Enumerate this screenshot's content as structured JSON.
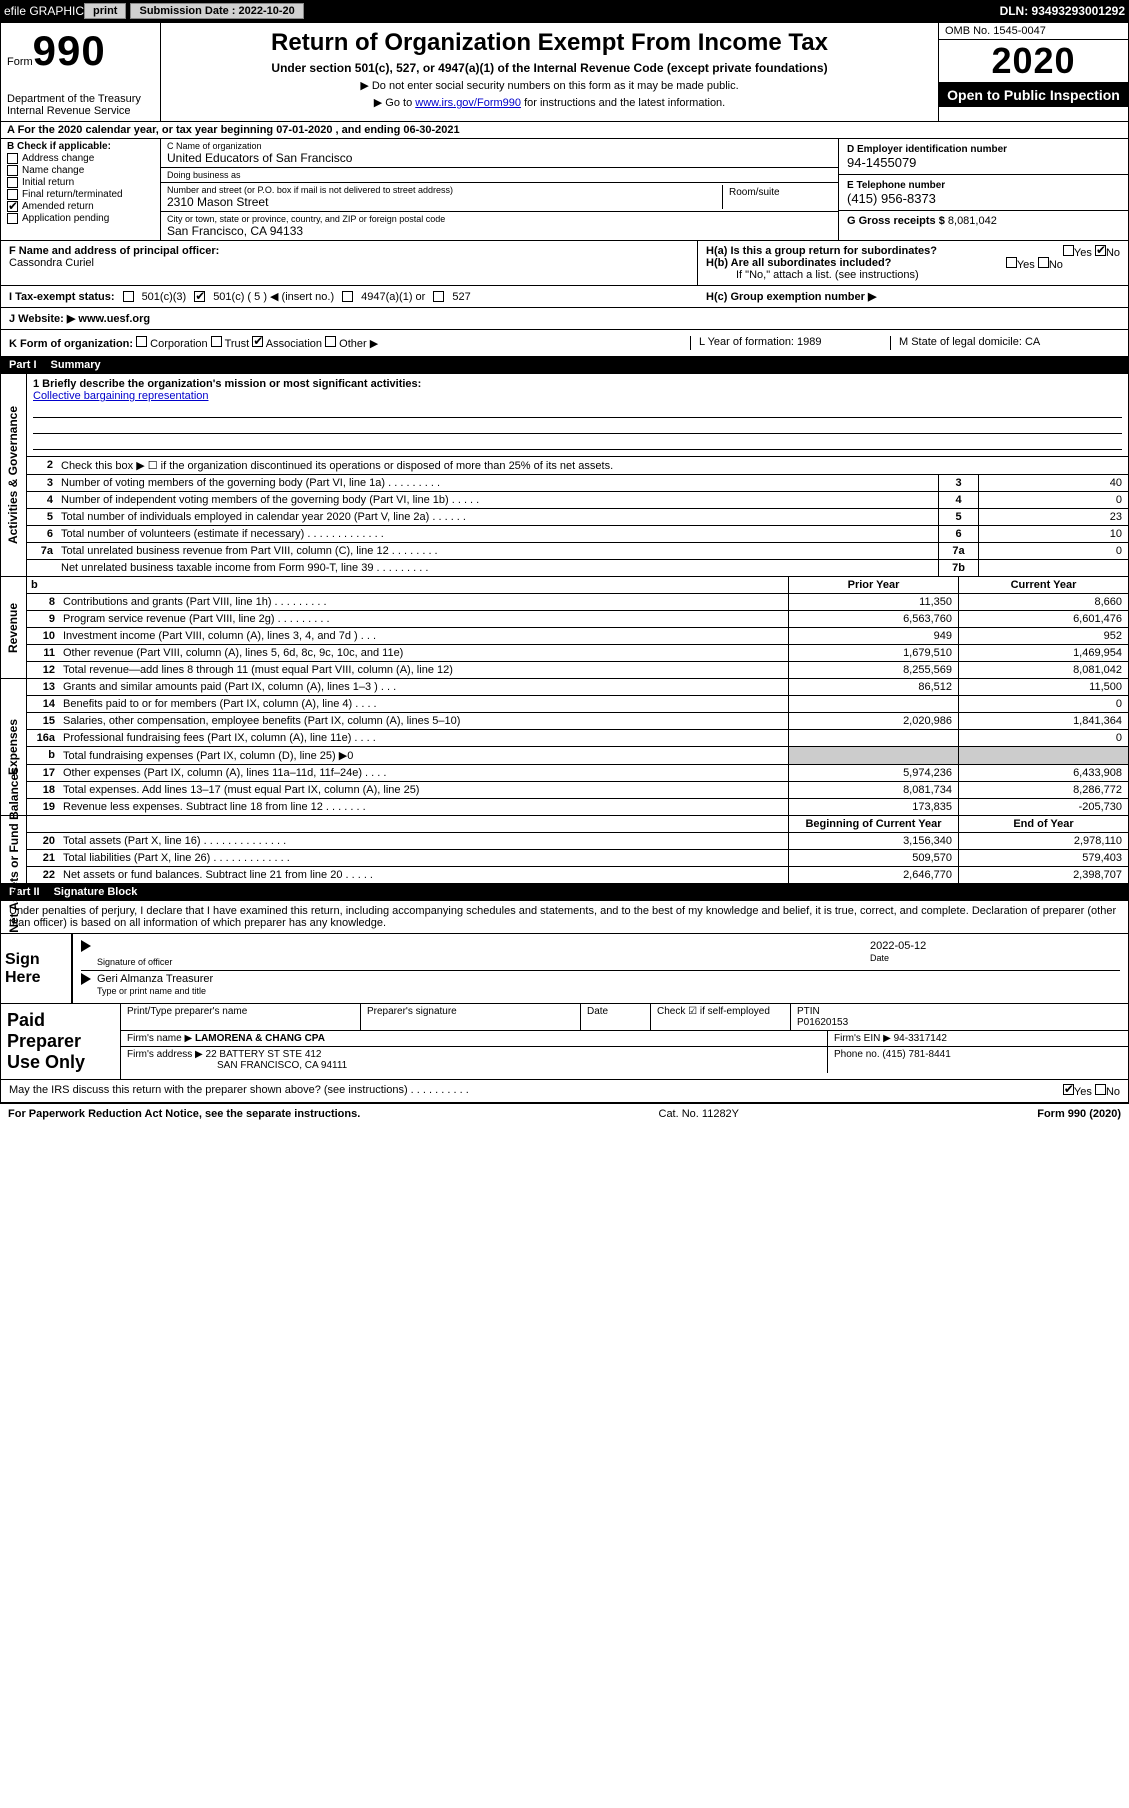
{
  "topbar": {
    "efile": "efile GRAPHIC",
    "print": "print",
    "subdate_label": "Submission Date : 2022-10-20",
    "dln": "DLN: 93493293001292"
  },
  "header": {
    "form_word": "Form",
    "form_num": "990",
    "dept": "Department of the Treasury\nInternal Revenue Service",
    "title": "Return of Organization Exempt From Income Tax",
    "sub1": "Under section 501(c), 527, or 4947(a)(1) of the Internal Revenue Code (except private foundations)",
    "sub2": "▶ Do not enter social security numbers on this form as it may be made public.",
    "sub3_pre": "▶ Go to ",
    "sub3_link": "www.irs.gov/Form990",
    "sub3_post": " for instructions and the latest information.",
    "omb": "OMB No. 1545-0047",
    "year": "2020",
    "open": "Open to Public Inspection"
  },
  "lineA": "A For the 2020 calendar year, or tax year beginning 07-01-2020   , and ending 06-30-2021",
  "boxB": {
    "label": "B Check if applicable:",
    "items": [
      {
        "label": "Address change",
        "checked": false
      },
      {
        "label": "Name change",
        "checked": false
      },
      {
        "label": "Initial return",
        "checked": false
      },
      {
        "label": "Final return/terminated",
        "checked": false
      },
      {
        "label": "Amended return",
        "checked": true
      },
      {
        "label": "Application pending",
        "checked": false
      }
    ]
  },
  "boxC": {
    "name_lbl": "C Name of organization",
    "name": "United Educators of San Francisco",
    "dba_lbl": "Doing business as",
    "addr_lbl": "Number and street (or P.O. box if mail is not delivered to street address)",
    "addr": "2310 Mason Street",
    "room_lbl": "Room/suite",
    "city_lbl": "City or town, state or province, country, and ZIP or foreign postal code",
    "city": "San Francisco, CA  94133"
  },
  "boxD": {
    "lbl": "D Employer identification number",
    "val": "94-1455079"
  },
  "boxE": {
    "lbl": "E Telephone number",
    "val": "(415) 956-8373"
  },
  "boxG": {
    "lbl": "G Gross receipts $",
    "val": "8,081,042"
  },
  "boxF": {
    "lbl": "F  Name and address of principal officer:",
    "val": "Cassondra Curiel"
  },
  "boxH": {
    "ha": "H(a)  Is this a group return for subordinates?",
    "hb": "H(b)  Are all subordinates included?",
    "hb_note": "If \"No,\" attach a list. (see instructions)",
    "hc": "H(c)  Group exemption number ▶",
    "yes": "Yes",
    "no": "No"
  },
  "boxI": {
    "lbl": "I   Tax-exempt status:",
    "opts": [
      "501(c)(3)",
      "501(c) ( 5 ) ◀ (insert no.)",
      "4947(a)(1) or",
      "527"
    ]
  },
  "boxJ": {
    "lbl": "J   Website: ▶",
    "val": "www.uesf.org"
  },
  "boxK": {
    "lbl": "K Form of organization:",
    "opts": [
      "Corporation",
      "Trust",
      "Association",
      "Other ▶"
    ],
    "L": "L Year of formation: 1989",
    "M": "M State of legal domicile: CA"
  },
  "part1": {
    "num": "Part I",
    "title": "Summary"
  },
  "summary": {
    "brief_lbl": "1  Briefly describe the organization's mission or most significant activities:",
    "brief_val": "Collective bargaining representation",
    "line2": "Check this box ▶ ☐  if the organization discontinued its operations or disposed of more than 25% of its net assets.",
    "rows": [
      {
        "n": "3",
        "txt": "Number of voting members of the governing body (Part VI, line 1a)  .   .   .   .   .   .   .   .   .",
        "box": "3",
        "val": "40"
      },
      {
        "n": "4",
        "txt": "Number of independent voting members of the governing body (Part VI, line 1b)  .   .   .   .   .",
        "box": "4",
        "val": "0"
      },
      {
        "n": "5",
        "txt": "Total number of individuals employed in calendar year 2020 (Part V, line 2a)  .   .   .   .   .   .",
        "box": "5",
        "val": "23"
      },
      {
        "n": "6",
        "txt": "Total number of volunteers (estimate if necessary)  .   .   .   .   .   .   .   .   .   .   .   .   .",
        "box": "6",
        "val": "10"
      },
      {
        "n": "7a",
        "txt": "Total unrelated business revenue from Part VIII, column (C), line 12  .   .   .   .   .   .   .   .",
        "box": "7a",
        "val": "0"
      },
      {
        "n": "",
        "txt": "Net unrelated business taxable income from Form 990-T, line 39  .   .   .   .   .   .   .   .   .",
        "box": "7b",
        "val": ""
      }
    ]
  },
  "revenue": {
    "side": "Revenue",
    "hdr_b": "b",
    "hdr1": "Prior Year",
    "hdr2": "Current Year",
    "rows": [
      {
        "n": "8",
        "txt": "Contributions and grants (Part VIII, line 1h)  .   .   .   .   .   .   .   .   .",
        "c1": "11,350",
        "c2": "8,660"
      },
      {
        "n": "9",
        "txt": "Program service revenue (Part VIII, line 2g)  .   .   .   .   .   .   .   .   .",
        "c1": "6,563,760",
        "c2": "6,601,476"
      },
      {
        "n": "10",
        "txt": "Investment income (Part VIII, column (A), lines 3, 4, and 7d )  .   .   .",
        "c1": "949",
        "c2": "952"
      },
      {
        "n": "11",
        "txt": "Other revenue (Part VIII, column (A), lines 5, 6d, 8c, 9c, 10c, and 11e)",
        "c1": "1,679,510",
        "c2": "1,469,954"
      },
      {
        "n": "12",
        "txt": "Total revenue—add lines 8 through 11 (must equal Part VIII, column (A), line 12)",
        "c1": "8,255,569",
        "c2": "8,081,042"
      }
    ]
  },
  "expenses": {
    "side": "Expenses",
    "rows": [
      {
        "n": "13",
        "txt": "Grants and similar amounts paid (Part IX, column (A), lines 1–3 )  .   .   .",
        "c1": "86,512",
        "c2": "11,500"
      },
      {
        "n": "14",
        "txt": "Benefits paid to or for members (Part IX, column (A), line 4)  .   .   .   .",
        "c1": "",
        "c2": "0"
      },
      {
        "n": "15",
        "txt": "Salaries, other compensation, employee benefits (Part IX, column (A), lines 5–10)",
        "c1": "2,020,986",
        "c2": "1,841,364"
      },
      {
        "n": "16a",
        "txt": "Professional fundraising fees (Part IX, column (A), line 11e)  .   .   .   .",
        "c1": "",
        "c2": "0"
      },
      {
        "n": "b",
        "txt": "Total fundraising expenses (Part IX, column (D), line 25) ▶0",
        "c1": "gray",
        "c2": "gray"
      },
      {
        "n": "17",
        "txt": "Other expenses (Part IX, column (A), lines 11a–11d, 11f–24e)  .   .   .   .",
        "c1": "5,974,236",
        "c2": "6,433,908"
      },
      {
        "n": "18",
        "txt": "Total expenses. Add lines 13–17 (must equal Part IX, column (A), line 25)",
        "c1": "8,081,734",
        "c2": "8,286,772"
      },
      {
        "n": "19",
        "txt": "Revenue less expenses. Subtract line 18 from line 12  .   .   .   .   .   .   .",
        "c1": "173,835",
        "c2": "-205,730"
      }
    ]
  },
  "netassets": {
    "side": "Net Assets or Fund Balances",
    "hdr1": "Beginning of Current Year",
    "hdr2": "End of Year",
    "rows": [
      {
        "n": "20",
        "txt": "Total assets (Part X, line 16)  .   .   .   .   .   .   .   .   .   .   .   .   .   .",
        "c1": "3,156,340",
        "c2": "2,978,110"
      },
      {
        "n": "21",
        "txt": "Total liabilities (Part X, line 26)  .   .   .   .   .   .   .   .   .   .   .   .   .",
        "c1": "509,570",
        "c2": "579,403"
      },
      {
        "n": "22",
        "txt": "Net assets or fund balances. Subtract line 21 from line 20  .   .   .   .   .",
        "c1": "2,646,770",
        "c2": "2,398,707"
      }
    ]
  },
  "part2": {
    "num": "Part II",
    "title": "Signature Block"
  },
  "sig": {
    "penalty": "Under penalties of perjury, I declare that I have examined this return, including accompanying schedules and statements, and to the best of my knowledge and belief, it is true, correct, and complete. Declaration of preparer (other than officer) is based on all information of which preparer has any knowledge.",
    "sign_here": "Sign Here",
    "sig_officer": "Signature of officer",
    "date": "2022-05-12",
    "date_lbl": "Date",
    "name": "Geri Almanza  Treasurer",
    "name_lbl": "Type or print name and title"
  },
  "prep": {
    "left": "Paid Preparer Use Only",
    "h1": "Print/Type preparer's name",
    "h2": "Preparer's signature",
    "h3": "Date",
    "h4": "Check ☑ if self-employed",
    "h5_lbl": "PTIN",
    "h5": "P01620153",
    "firm_lbl": "Firm's name    ▶",
    "firm": "LAMORENA & CHANG CPA",
    "ein_lbl": "Firm's EIN ▶",
    "ein": "94-3317142",
    "addr_lbl": "Firm's address ▶",
    "addr1": "22 BATTERY ST STE 412",
    "addr2": "SAN FRANCISCO, CA  94111",
    "phone_lbl": "Phone no.",
    "phone": "(415) 781-8441"
  },
  "discuss": {
    "txt": "May the IRS discuss this return with the preparer shown above? (see instructions)  .   .   .   .   .   .   .   .   .   .",
    "yes": "Yes",
    "no": "No"
  },
  "footer": {
    "left": "For Paperwork Reduction Act Notice, see the separate instructions.",
    "mid": "Cat. No. 11282Y",
    "right": "Form 990 (2020)"
  }
}
